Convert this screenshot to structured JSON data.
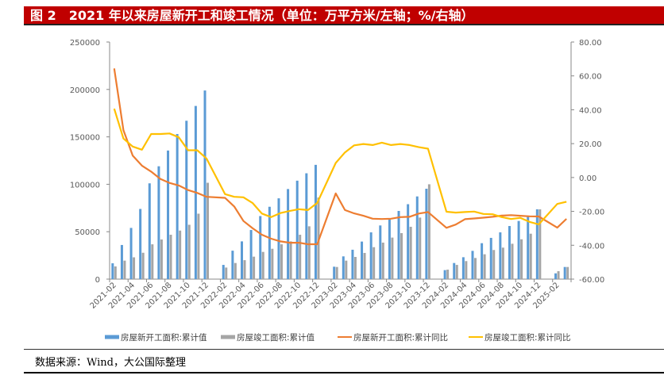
{
  "title": "图 2　2021 年以来房屋新开工和竣工情况（单位：万平方米/左轴；%/右轴）",
  "source": "数据来源：Wind，大公国际整理",
  "chart_data": {
    "type": "bar+line",
    "title": "2021 年以来房屋新开工和竣工情况（单位：万平方米/左轴；%/右轴）",
    "categories": [
      "2021-02",
      "2021-03",
      "2021-04",
      "2021-05",
      "2021-06",
      "2021-07",
      "2021-08",
      "2021-09",
      "2021-10",
      "2021-11",
      "2021-12",
      "2022-01",
      "2022-02",
      "2022-03",
      "2022-04",
      "2022-05",
      "2022-06",
      "2022-07",
      "2022-08",
      "2022-09",
      "2022-10",
      "2022-11",
      "2022-12",
      "2023-01",
      "2023-02",
      "2023-03",
      "2023-04",
      "2023-05",
      "2023-06",
      "2023-07",
      "2023-08",
      "2023-09",
      "2023-10",
      "2023-11",
      "2023-12",
      "2024-01",
      "2024-02",
      "2024-03",
      "2024-04",
      "2024-05",
      "2024-06",
      "2024-07",
      "2024-08",
      "2024-09",
      "2024-10",
      "2024-11",
      "2024-12",
      "2025-01",
      "2025-02",
      "2025-03"
    ],
    "tick_labels": [
      "2021-02",
      "2021-04",
      "2021-06",
      "2021-08",
      "2021-10",
      "2021-12",
      "2022-02",
      "2022-04",
      "2022-06",
      "2022-08",
      "2022-10",
      "2022-12",
      "2023-02",
      "2023-04",
      "2023-06",
      "2023-08",
      "2023-10",
      "2023-12",
      "2024-02",
      "2024-04",
      "2024-06",
      "2024-08",
      "2024-10",
      "2024-12",
      "2025-02"
    ],
    "left_axis": {
      "range": [
        0,
        250000
      ],
      "ticks": [
        "0",
        "50000",
        "100000",
        "150000",
        "200000",
        "250000"
      ]
    },
    "right_axis": {
      "range": [
        -60,
        80
      ],
      "ticks": [
        "-60.00",
        "-40.00",
        "-20.00",
        "0.00",
        "20.00",
        "40.00",
        "60.00",
        "80.00"
      ]
    },
    "legend_position": "bottom",
    "series": [
      {
        "name": "房屋新开工面积:累计值",
        "type": "bar",
        "axis": "left",
        "color": "#5b9bd5",
        "values": [
          16700,
          36000,
          54000,
          74000,
          101000,
          119000,
          135600,
          153000,
          167000,
          182600,
          198900,
          null,
          15000,
          30000,
          39800,
          51800,
          66500,
          76300,
          85200,
          95000,
          103800,
          111600,
          120500,
          null,
          13100,
          24000,
          31000,
          39600,
          49300,
          56600,
          63000,
          71900,
          79000,
          87200,
          95300,
          null,
          9500,
          17000,
          23100,
          29800,
          37900,
          43500,
          49300,
          56000,
          61300,
          66600,
          73600,
          null,
          6100,
          12800
        ]
      },
      {
        "name": "房屋竣工面积:累计值",
        "type": "bar",
        "axis": "left",
        "color": "#a5a5a5",
        "values": [
          13400,
          19500,
          23000,
          27800,
          36700,
          41800,
          46800,
          51200,
          57300,
          69000,
          101600,
          null,
          12200,
          17000,
          20000,
          23700,
          28700,
          32000,
          36700,
          39800,
          46800,
          55700,
          86000,
          null,
          12800,
          19500,
          23400,
          27600,
          33700,
          38500,
          43800,
          48500,
          55200,
          64900,
          100000,
          null,
          10000,
          15000,
          19000,
          22300,
          26200,
          30700,
          33200,
          37300,
          42000,
          47900,
          73600,
          null,
          8400,
          12800
        ]
      },
      {
        "name": "房屋新开工面积:累计同比",
        "type": "line",
        "axis": "right",
        "color": "#ed7d31",
        "values": [
          64.4,
          28.0,
          12.9,
          7.0,
          3.5,
          -0.8,
          -3.2,
          -4.7,
          -7.4,
          -9.1,
          -11.4,
          null,
          -12.0,
          -17.1,
          -25.7,
          -30.0,
          -33.8,
          -36.1,
          -37.7,
          -38.5,
          -38.5,
          -39.4,
          -39.4,
          null,
          -9.4,
          -19.2,
          -21.2,
          -22.6,
          -24.3,
          -24.5,
          -24.3,
          -23.4,
          -23.2,
          -21.3,
          -20.4,
          null,
          -29.7,
          -27.8,
          -24.6,
          -24.2,
          -23.7,
          -23.2,
          -22.5,
          -22.2,
          -22.6,
          -22.9,
          -23.0,
          null,
          -29.6,
          -24.4
        ]
      },
      {
        "name": "房屋竣工面积:累计同比",
        "type": "line",
        "axis": "right",
        "color": "#ffc000",
        "values": [
          40.6,
          23.0,
          18.3,
          16.4,
          25.7,
          25.7,
          26.0,
          23.7,
          16.1,
          16.1,
          11.2,
          null,
          -9.8,
          -11.4,
          -11.7,
          -15.1,
          -21.3,
          -23.4,
          -21.0,
          -19.8,
          -18.7,
          -19.2,
          -15.0,
          null,
          8.6,
          14.8,
          19.0,
          19.8,
          19.2,
          20.6,
          19.2,
          19.8,
          19.2,
          17.9,
          17.0,
          null,
          -20.2,
          -20.7,
          -20.4,
          -20.1,
          -21.5,
          -21.7,
          -23.4,
          -24.5,
          -23.8,
          -26.2,
          -27.7,
          null,
          -15.6,
          -14.3
        ]
      }
    ]
  }
}
